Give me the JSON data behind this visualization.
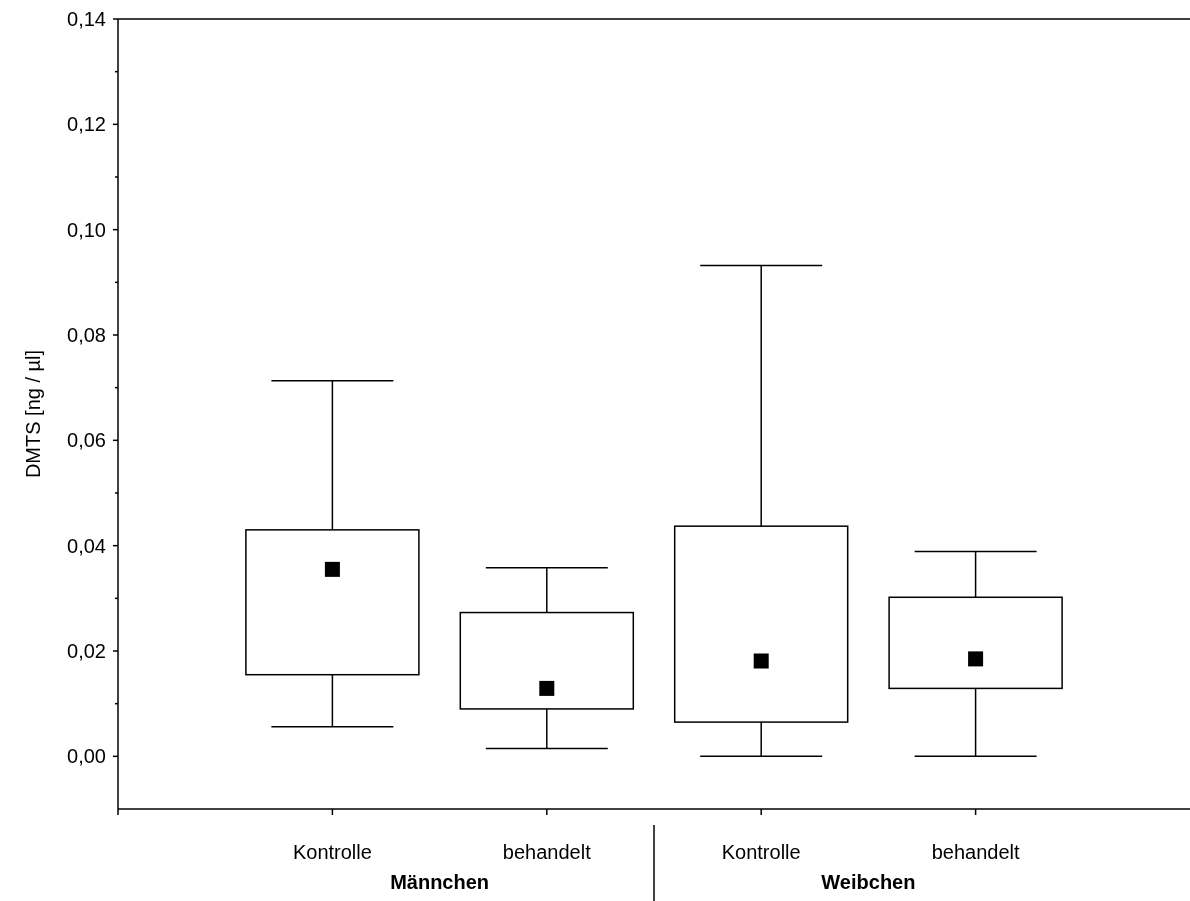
{
  "chart_data": {
    "type": "box",
    "ylabel": "DMTS [ng / µl]",
    "categories": [
      "Kontrolle",
      "behandelt",
      "Kontrolle",
      "behandelt"
    ],
    "boxes": [
      {
        "low": 0.0056,
        "q1": 0.0155,
        "median": 0.0355,
        "q3": 0.043,
        "high": 0.0713
      },
      {
        "low": 0.0015,
        "q1": 0.009,
        "median": 0.0129,
        "q3": 0.0273,
        "high": 0.0358
      },
      {
        "low": 0,
        "q1": 0.0065,
        "median": 0.0181,
        "q3": 0.0437,
        "high": 0.0932
      },
      {
        "low": 0,
        "q1": 0.0129,
        "median": 0.0185,
        "q3": 0.0302,
        "high": 0.0389
      }
    ],
    "marker": "square",
    "color": "#000000",
    "ylim": [
      -0.01,
      0.14
    ],
    "yticks": [
      {
        "value": 0,
        "label": "0,00"
      },
      {
        "value": 0.01,
        "label": null
      },
      {
        "value": 0.02,
        "label": "0,02"
      },
      {
        "value": 0.03,
        "label": null
      },
      {
        "value": 0.04,
        "label": "0,04"
      },
      {
        "value": 0.05,
        "label": null
      },
      {
        "value": 0.06,
        "label": "0,06"
      },
      {
        "value": 0.07,
        "label": null
      },
      {
        "value": 0.08,
        "label": "0,08"
      },
      {
        "value": 0.09,
        "label": null
      },
      {
        "value": 0.1,
        "label": "0,10"
      },
      {
        "value": 0.11,
        "label": null
      },
      {
        "value": 0.12,
        "label": "0,12"
      },
      {
        "value": 0.13,
        "label": null
      },
      {
        "value": 0.14,
        "label": "0,14"
      }
    ],
    "annotations": [
      "Männchen",
      "Weibchen"
    ]
  }
}
